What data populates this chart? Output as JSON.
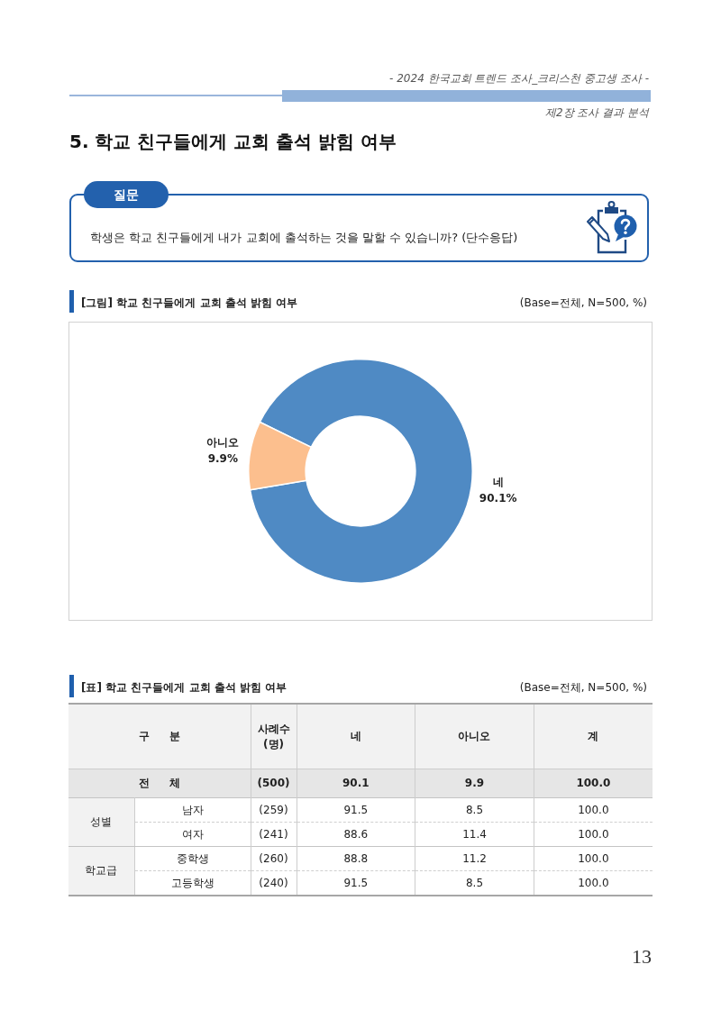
{
  "chart_data": [
    {
      "type": "donut",
      "title": "[그림] 학교 친구들에게 교회 출석 밝힘 여부",
      "subtitle": "(Base=전체, N=500, %)",
      "categories": [
        "네",
        "아니오"
      ],
      "values": [
        90.1,
        9.9
      ],
      "colors": [
        "#4f8ac4",
        "#fcbf8e"
      ],
      "value_labels": [
        "90.1%",
        "9.9%"
      ],
      "annotations": [
        "- 2024 한국교회 트렌드 조사_크리스천 중고생 조사 -",
        "제2장 조사 결과 분석",
        "5. 학교 친구들에게 교회 출석 밝힘 여부",
        "질문",
        "학생은 학교 친구들에게 내가 교회에 출석하는 것을 말할 수 있습니까? (단수응답)",
        "13"
      ]
    },
    {
      "type": "other",
      "title": "[표] 학교 친구들에게 교회 출석 밝힘 여부",
      "subtitle": "(Base=전체, N=500, %)",
      "ylabel": "구 분",
      "categories": [
        "사례수\n(명)",
        "네",
        "아니오",
        "계"
      ],
      "y_categories": [
        "전 체",
        "남자",
        "여자",
        "중학생",
        "고등학생"
      ],
      "y2_categories": [
        null,
        "성별",
        null,
        "학교급",
        null
      ],
      "cell_labels": [
        [
          "(500)",
          "90.1",
          "9.9",
          "100.0"
        ],
        [
          "(259)",
          "91.5",
          "8.5",
          "100.0"
        ],
        [
          "(241)",
          "88.6",
          "11.4",
          "100.0"
        ],
        [
          "(260)",
          "88.8",
          "11.2",
          "100.0"
        ],
        [
          "(240)",
          "91.5",
          "8.5",
          "100.0"
        ]
      ]
    }
  ]
}
